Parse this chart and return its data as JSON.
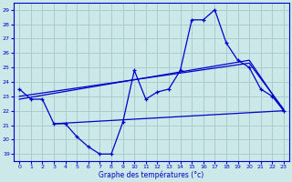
{
  "xlabel": "Graphe des températures (°c)",
  "xlim": [
    -0.5,
    23.5
  ],
  "ylim": [
    18.5,
    29.5
  ],
  "yticks": [
    19,
    20,
    21,
    22,
    23,
    24,
    25,
    26,
    27,
    28,
    29
  ],
  "xticks": [
    0,
    1,
    2,
    3,
    4,
    5,
    6,
    7,
    8,
    9,
    10,
    11,
    12,
    13,
    14,
    15,
    16,
    17,
    18,
    19,
    20,
    21,
    22,
    23
  ],
  "background_color": "#cce8e8",
  "grid_color": "#aacccc",
  "line_color": "#0000cc",
  "line_marker": {
    "x": [
      0,
      1,
      2,
      3,
      4,
      5,
      6,
      7,
      8,
      9,
      10,
      11,
      12,
      13,
      14,
      15,
      16,
      17,
      18,
      19,
      20,
      21,
      22,
      23
    ],
    "y": [
      23.5,
      22.8,
      22.8,
      21.1,
      21.1,
      20.2,
      19.5,
      19.0,
      19.0,
      21.2,
      24.8,
      22.8,
      23.3,
      23.5,
      24.8,
      28.3,
      28.3,
      29.0,
      26.7,
      25.5,
      25.0,
      23.5,
      23.0,
      22.0
    ]
  },
  "line_straight1": {
    "x": [
      0,
      23
    ],
    "y": [
      22.8,
      22.0
    ]
  },
  "line_straight2": {
    "x": [
      0,
      20,
      23
    ],
    "y": [
      22.8,
      25.5,
      22.0
    ]
  },
  "line_straight3": {
    "x": [
      0,
      20,
      23
    ],
    "y": [
      23.0,
      25.3,
      22.1
    ]
  },
  "line_flat": {
    "x": [
      3,
      23
    ],
    "y": [
      21.1,
      22.0
    ]
  }
}
